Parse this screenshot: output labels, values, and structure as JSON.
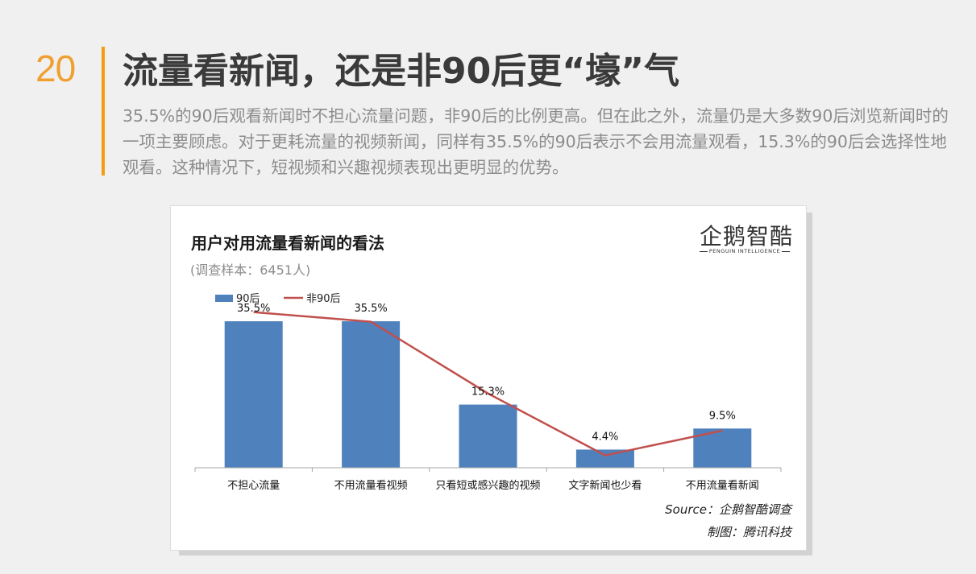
{
  "page": {
    "number": "20",
    "title": "流量看新闻，还是非90后更“壕”气",
    "description": "35.5%的90后观看新闻时不担心流量问题，非90后的比例更高。但在此之外，流量仍是大多数90后浏览新闻时的一项主要顾虑。对于更耗流量的视频新闻，同样有35.5%的90后表示不会用流量观看，15.3%的90后会选择性地观看。这种情况下，短视频和兴趣视频表现出更明显的优势。"
  },
  "logo": {
    "text": "企鹅智酷",
    "subtext": "PENGUIN INTELLIGENCE"
  },
  "chart_data": {
    "type": "bar",
    "title": "用户对用流量看新闻的看法",
    "subtitle": "(调查样本：6451人)",
    "categories": [
      "不担心流量",
      "不用流量看视频",
      "只看短或感兴趣的视频",
      "文字新闻也少看",
      "不用流量看新闻"
    ],
    "series": [
      {
        "name": "90后",
        "type": "bar",
        "color": "#4f81bd",
        "values": [
          35.5,
          35.5,
          15.3,
          4.4,
          9.5
        ],
        "labels": [
          "35.5%",
          "35.5%",
          "15.3%",
          "4.4%",
          "9.5%"
        ]
      },
      {
        "name": "非90后",
        "type": "line",
        "color": "#c0504d",
        "values": [
          37.7,
          35.4,
          18.0,
          3.0,
          9.0
        ]
      }
    ],
    "ylim": [
      0,
      40
    ],
    "grid": false,
    "legend": "top-left",
    "source": "Source：企鹅智酷调查",
    "credit": "制图：腾讯科技"
  }
}
